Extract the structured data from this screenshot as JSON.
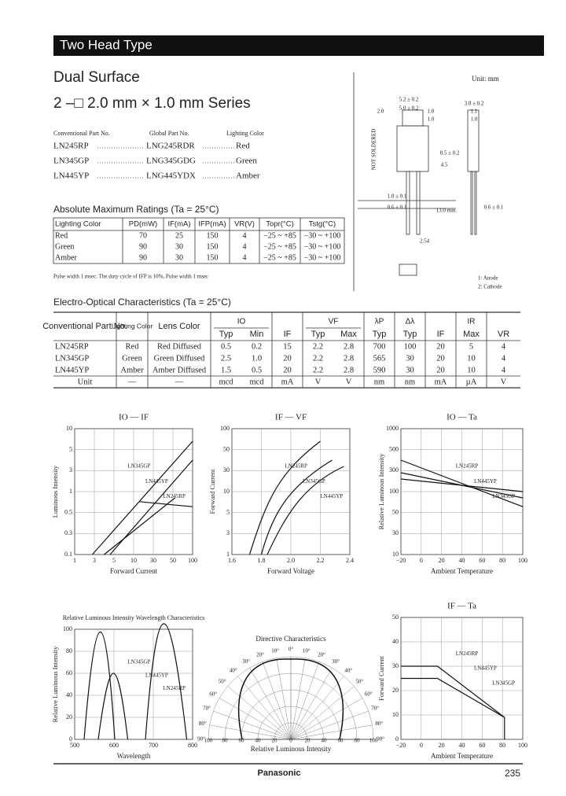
{
  "header": {
    "title": "Two Head Type"
  },
  "product": {
    "title": "Dual Surface",
    "series": "2 –□ 2.0 mm × 1.0 mm Series"
  },
  "parts": {
    "headers": [
      "Conventional Part No.",
      "Global Part No.",
      "Lighting Color"
    ],
    "rows": [
      [
        "LN245RP",
        "LNG245RDR",
        "Red"
      ],
      [
        "LN345GP",
        "LNG345GDG",
        "Green"
      ],
      [
        "LN445YP",
        "LNG445YDX",
        "Amber"
      ]
    ]
  },
  "drawing": {
    "unit": "Unit: mm",
    "not_soldered": "NOT SOLDERED",
    "dims": [
      "5.2 ± 0.2",
      "5.0 ± 0.2",
      "2.0",
      "1.0",
      "1.0",
      "3.0 ± 0.2",
      "1.1",
      "1.0",
      "4.5",
      "8.5 ± 0.2",
      "1.0 ± 0.1",
      "0.6 ± 0.1",
      "0.6 ± 0.1",
      "13.0 min.",
      "2.54"
    ],
    "pins": [
      "1: Anode",
      "2: Cathode"
    ]
  },
  "abs_max": {
    "title": "Absolute Maximum Ratings (Ta = 25°C)",
    "headers": [
      "Lighting Color",
      "PD(mW)",
      "IF(mA)",
      "IFP(mA)",
      "VR(V)",
      "Topr(°C)",
      "Tstg(°C)"
    ],
    "rows": [
      [
        "Red",
        "70",
        "25",
        "150",
        "4",
        "−25 ~ +85",
        "−30 ~ +100"
      ],
      [
        "Green",
        "90",
        "30",
        "150",
        "4",
        "−25 ~ +85",
        "−30 ~ +100"
      ],
      [
        "Amber",
        "90",
        "30",
        "150",
        "4",
        "−25 ~ +85",
        "−30 ~ +100"
      ]
    ],
    "note": "Pulse width 1 msec. The duty cycle of IFP is 10%, Pulse width 1 msec"
  },
  "eo": {
    "title": "Electro-Optical Characteristics (Ta = 25°C)",
    "groups": [
      "IO",
      "VF",
      "λP",
      "Δλ",
      "IR"
    ],
    "columns": [
      "Conventional Part No.",
      "Lighting Color",
      "Lens Color",
      "Typ",
      "Min",
      "IF",
      "Typ",
      "Max",
      "Typ",
      "Typ",
      "IF",
      "Max",
      "VR"
    ],
    "rows": [
      [
        "LN245RP",
        "Red",
        "Red Diffused",
        "0.5",
        "0.2",
        "15",
        "2.2",
        "2.8",
        "700",
        "100",
        "20",
        "5",
        "4"
      ],
      [
        "LN345GP",
        "Green",
        "Green Diffused",
        "2.5",
        "1.0",
        "20",
        "2.2",
        "2.8",
        "565",
        "30",
        "20",
        "10",
        "4"
      ],
      [
        "LN445YP",
        "Amber",
        "Amber Diffused",
        "1.5",
        "0.5",
        "20",
        "2.2",
        "2.8",
        "590",
        "30",
        "20",
        "10",
        "4"
      ],
      [
        "Unit",
        "—",
        "—",
        "mcd",
        "mcd",
        "mA",
        "V",
        "V",
        "nm",
        "nm",
        "mA",
        "µA",
        "V"
      ]
    ]
  },
  "charts": [
    {
      "title": "IO — IF",
      "x_label": "Forward Current",
      "y_label": "Luminous Intensity",
      "xticks": [
        "1",
        "3",
        "5",
        "10",
        "30",
        "50",
        "100"
      ],
      "yticks": [
        "10",
        "5",
        "3",
        "1",
        "0.5",
        "0.3",
        "0.1"
      ],
      "labels": [
        "LN345GP",
        "LN445YP",
        "LN245RP"
      ]
    },
    {
      "title": "IF — VF",
      "x_label": "Forward Voltage",
      "y_label": "Forward Current",
      "xticks": [
        "1.6",
        "1.8",
        "2.0",
        "2.2",
        "2.4"
      ],
      "yticks": [
        "100",
        "50",
        "30",
        "10",
        "5",
        "3",
        "1"
      ],
      "labels": [
        "LN245RP",
        "LN345GP",
        "LN445YP"
      ]
    },
    {
      "title": "IO — Ta",
      "x_label": "Ambient Temperature",
      "y_label": "Relative Luminous Intensity",
      "xticks": [
        "−20",
        "0",
        "20",
        "40",
        "60",
        "80",
        "100"
      ],
      "yticks": [
        "1000",
        "500",
        "300",
        "100",
        "50",
        "30",
        "10"
      ],
      "labels": [
        "LN245RP",
        "LN445YP",
        "LN345GP"
      ]
    },
    {
      "title": "Relative Luminous Intensity Wavelength Characteristics",
      "x_label": "Wavelength",
      "y_label": "Relative Luminous Intensity",
      "xticks": [
        "500",
        "600",
        "700",
        "800"
      ],
      "yticks": [
        "100",
        "80",
        "60",
        "40",
        "20",
        "0"
      ],
      "labels": [
        "LN345GP",
        "LN445YP",
        "LN245RP"
      ]
    },
    {
      "title": "IF — Ta",
      "x_label": "Ambient Temperature",
      "y_label": "Forward Current",
      "xticks": [
        "−20",
        "0",
        "20",
        "40",
        "60",
        "80",
        "100"
      ],
      "yticks": [
        "50",
        "40",
        "30",
        "20",
        "10",
        "0"
      ],
      "labels": [
        "LN245RP",
        "LN445YP",
        "LN345GP"
      ]
    }
  ],
  "directive": {
    "title": "Directive Characteristics",
    "x_label": "Relative Luminous Intensity",
    "angles": [
      "0°",
      "10°",
      "20°",
      "30°",
      "40°",
      "50°",
      "60°",
      "70°",
      "80°",
      "90°"
    ],
    "radial": [
      "100",
      "80",
      "60",
      "40",
      "20",
      "0",
      "20",
      "40",
      "60",
      "80",
      "100"
    ]
  },
  "footer": {
    "brand": "Panasonic",
    "page": "235"
  }
}
